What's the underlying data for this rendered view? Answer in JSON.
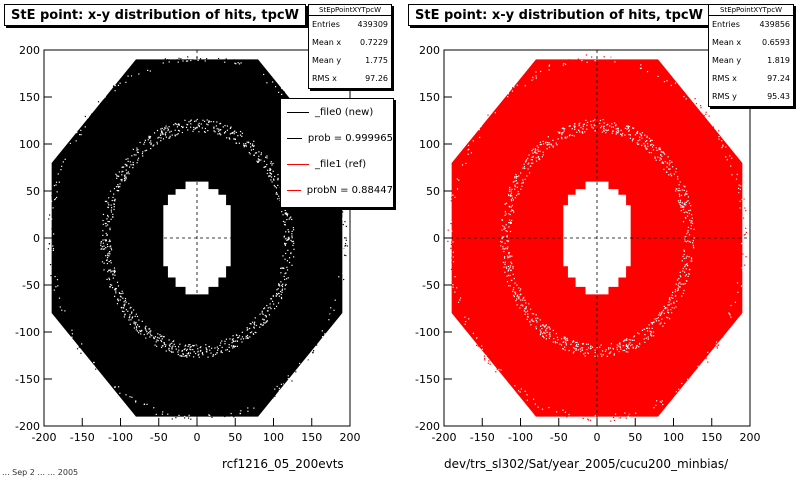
{
  "chart_data": [
    {
      "type": "heatmap",
      "title": "StE point: x-y distribution of hits, tpcW",
      "stats_name": "StEpPointXYTpcW",
      "stats": [
        {
          "label": "Entries",
          "value": "439309"
        },
        {
          "label": "Mean x",
          "value": "0.7229"
        },
        {
          "label": "Mean y",
          "value": "1.775"
        },
        {
          "label": "RMS x",
          "value": "97.26"
        }
      ],
      "legend": [
        {
          "label": "_file0 (new)",
          "color": "#000000"
        },
        {
          "label": "prob = 0.999965",
          "color": "#000000"
        },
        {
          "label": "_file1 (ref)",
          "color": "#ff0000"
        },
        {
          "label": "probN = 0.88447",
          "color": "#ff0000"
        }
      ],
      "xlabel": "rcf1216_05_200evts",
      "x_ticks": [
        "-200",
        "-150",
        "-100",
        "-50",
        "0",
        "50",
        "100",
        "150",
        "200"
      ],
      "y_ticks": [
        "200",
        "150",
        "100",
        "50",
        "0",
        "-50",
        "-100",
        "-150",
        "-200"
      ],
      "xlim": [
        -200,
        200
      ],
      "ylim": [
        -200,
        200
      ],
      "fill_color": "#000000",
      "distribution": {
        "inner_radius": 50,
        "outer_radius": 190,
        "gap_radius": 120
      }
    },
    {
      "type": "heatmap",
      "title": "StE point: x-y distribution of hits, tpcW",
      "stats_name": "StEpPointXYTpcW",
      "stats": [
        {
          "label": "Entries",
          "value": "439856"
        },
        {
          "label": "Mean x",
          "value": "0.6593"
        },
        {
          "label": "Mean y",
          "value": "1.819"
        },
        {
          "label": "RMS x",
          "value": "97.24"
        },
        {
          "label": "RMS y",
          "value": "95.43"
        }
      ],
      "xlabel": "dev/trs_sl302/Sat/year_2005/cucu200_minbias/",
      "x_ticks": [
        "-200",
        "-150",
        "-100",
        "-50",
        "0",
        "50",
        "100",
        "150",
        "200"
      ],
      "y_ticks": [
        "200",
        "150",
        "100",
        "50",
        "0",
        "-50",
        "-100",
        "-150",
        "-200"
      ],
      "xlim": [
        -200,
        200
      ],
      "ylim": [
        -200,
        200
      ],
      "fill_color": "#ff0000",
      "distribution": {
        "inner_radius": 50,
        "outer_radius": 190,
        "gap_radius": 120
      }
    }
  ],
  "footer_text": "... Sep 2 ... ... 2005"
}
